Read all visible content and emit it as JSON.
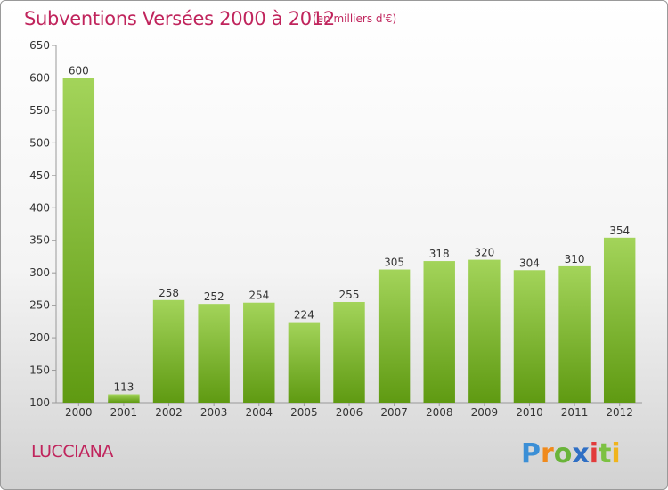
{
  "header": {
    "title": "Subventions Versées 2000 à 2012",
    "unit": "(en milliers d'€)"
  },
  "footer": {
    "commune": "LUCCIANA",
    "logo_icon": "proxiti-logo-icon"
  },
  "colors": {
    "title": "#c0245c",
    "bar_top": "#a3d45a",
    "bar_bottom": "#5f9a12"
  },
  "chart_data": {
    "type": "bar",
    "title": "Subventions Versées 2000 à 2012",
    "subtitle": "(en milliers d'€)",
    "xlabel": "",
    "ylabel": "",
    "categories": [
      "2000",
      "2001",
      "2002",
      "2003",
      "2004",
      "2005",
      "2006",
      "2007",
      "2008",
      "2009",
      "2010",
      "2011",
      "2012"
    ],
    "values": [
      600,
      113,
      258,
      252,
      254,
      224,
      255,
      305,
      318,
      320,
      304,
      310,
      354
    ],
    "ylim": [
      100,
      650
    ],
    "yticks": [
      100,
      150,
      200,
      250,
      300,
      350,
      400,
      450,
      500,
      550,
      600,
      650
    ],
    "grid": false,
    "data_labels": true
  }
}
